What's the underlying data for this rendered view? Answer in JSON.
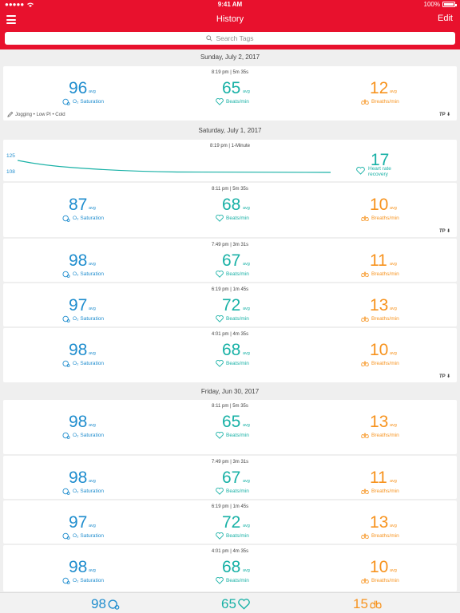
{
  "status_bar": {
    "time": "9:41 AM",
    "battery": "100%"
  },
  "nav": {
    "title": "History",
    "edit_label": "Edit"
  },
  "search": {
    "placeholder": "Search Tags"
  },
  "labels": {
    "avg": "avg",
    "o2_saturation": "O₂ Saturation",
    "beats_per_min": "Beats/min",
    "breaths_per_min": "Breaths/min",
    "tp": "TP ⬇"
  },
  "days": [
    {
      "date": "Sunday, July 2, 2017",
      "records": [
        {
          "time": "8:19 pm | 5m 35s",
          "o2": "96",
          "bpm": "65",
          "br": "12",
          "tags": "Jogging • Low PI • Cold",
          "tp": true
        }
      ]
    },
    {
      "date": "Saturday, July 1, 2017",
      "recovery": {
        "time": "8:19 pm | 1-Minute",
        "value": "17",
        "label_line1": "Heart rate",
        "label_line2": "recovery",
        "y_top_label": "125",
        "y_bottom_label": "108"
      },
      "records": [
        {
          "time": "8:11 pm | 5m 35s",
          "o2": "87",
          "bpm": "68",
          "br": "10",
          "tp": true
        },
        {
          "time": "7:49 pm | 3m 31s",
          "o2": "98",
          "bpm": "67",
          "br": "11"
        },
        {
          "time": "6:19 pm | 1m 45s",
          "o2": "97",
          "bpm": "72",
          "br": "13"
        },
        {
          "time": "4:01 pm | 4m 35s",
          "o2": "98",
          "bpm": "68",
          "br": "10",
          "tp": true
        }
      ]
    },
    {
      "date": "Friday, Jun 30, 2017",
      "records": [
        {
          "time": "8:11 pm | 5m 35s",
          "o2": "98",
          "bpm": "65",
          "br": "13"
        },
        {
          "time": "7:49 pm | 3m 31s",
          "o2": "98",
          "bpm": "67",
          "br": "11"
        },
        {
          "time": "6:19 pm | 1m 45s",
          "o2": "97",
          "bpm": "72",
          "br": "13"
        },
        {
          "time": "4:01 pm | 4m 35s",
          "o2": "98",
          "bpm": "68",
          "br": "10"
        }
      ]
    }
  ],
  "footer": {
    "o2": "98",
    "bpm": "65",
    "br": "15"
  },
  "colors": {
    "header_red": "#e8112d",
    "o2_blue": "#1f8dce",
    "bpm_teal": "#18b1a6",
    "breath_orange": "#f7931e"
  }
}
